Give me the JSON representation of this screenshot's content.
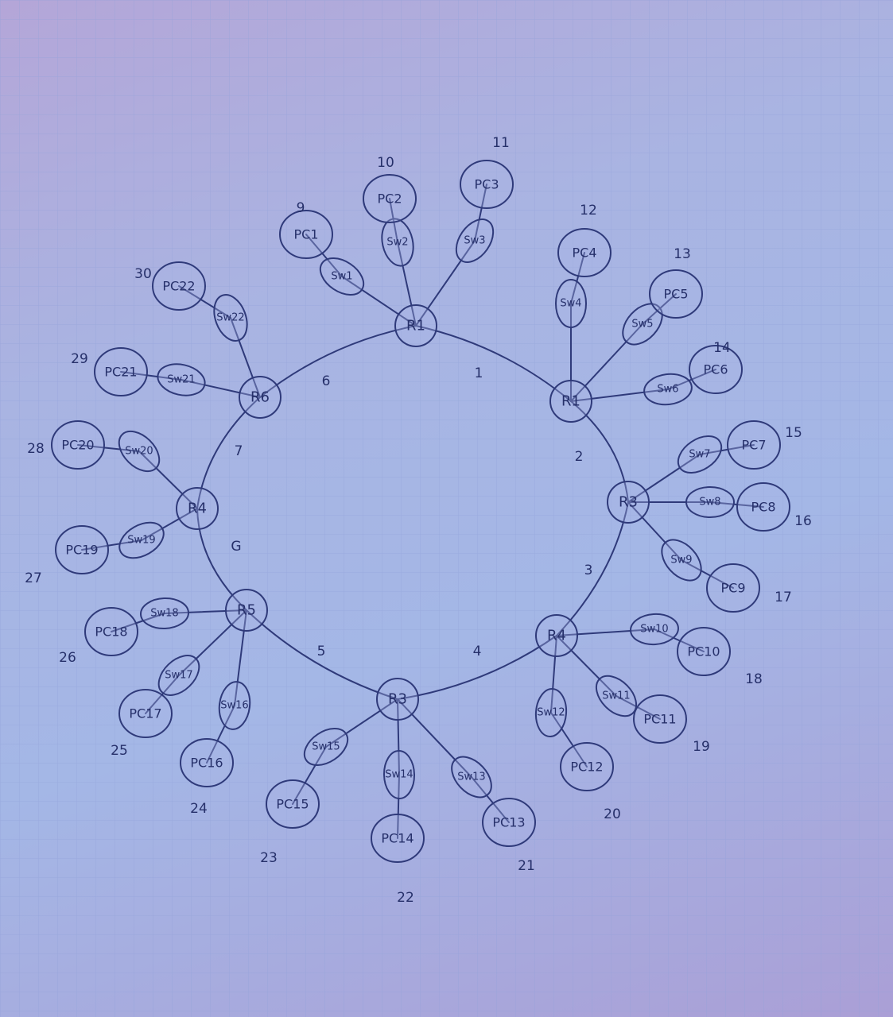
{
  "diagram": {
    "type": "network-topology",
    "paper": {
      "grid": true
    },
    "routers": [
      {
        "id": "r1a",
        "label": "R1"
      },
      {
        "id": "r1b",
        "label": "R1"
      },
      {
        "id": "r3",
        "label": "R3"
      },
      {
        "id": "r4",
        "label": "R4"
      },
      {
        "id": "r3b",
        "label": "R3"
      },
      {
        "id": "r5",
        "label": "R5"
      },
      {
        "id": "r4b",
        "label": "R4"
      },
      {
        "id": "r6",
        "label": "R6"
      }
    ],
    "ring_links": [
      {
        "from": "r1a",
        "to": "r1b",
        "label": "1"
      },
      {
        "from": "r1b",
        "to": "r3",
        "label": "2"
      },
      {
        "from": "r3",
        "to": "r4",
        "label": "3"
      },
      {
        "from": "r4",
        "to": "r3b",
        "label": "4"
      },
      {
        "from": "r3b",
        "to": "r5",
        "label": "5"
      },
      {
        "from": "r5",
        "to": "r4b",
        "label": "G"
      },
      {
        "from": "r4b",
        "to": "r6",
        "label": "7"
      },
      {
        "from": "r6",
        "to": "r1a",
        "label": "6"
      }
    ],
    "branches": [
      {
        "router": "r1a",
        "switch": "Sw1",
        "pc": "PC1",
        "num": "9"
      },
      {
        "router": "r1a",
        "switch": "Sw2",
        "pc": "PC2",
        "num": "10"
      },
      {
        "router": "r1a",
        "switch": "Sw3",
        "pc": "PC3",
        "num": "11"
      },
      {
        "router": "r1b",
        "switch": "Sw4",
        "pc": "PC4",
        "num": "12"
      },
      {
        "router": "r1b",
        "switch": "Sw5",
        "pc": "PC5",
        "num": "13"
      },
      {
        "router": "r1b",
        "switch": "Sw6",
        "pc": "PC6",
        "num": "14"
      },
      {
        "router": "r3",
        "switch": "Sw7",
        "pc": "PC7",
        "num": "15"
      },
      {
        "router": "r3",
        "switch": "Sw8",
        "pc": "PC8",
        "num": "16"
      },
      {
        "router": "r3",
        "switch": "Sw9",
        "pc": "PC9",
        "num": "17"
      },
      {
        "router": "r4",
        "switch": "Sw10",
        "pc": "PC10",
        "num": "18"
      },
      {
        "router": "r4",
        "switch": "Sw11",
        "pc": "PC11",
        "num": "19"
      },
      {
        "router": "r4",
        "switch": "Sw12",
        "pc": "PC12",
        "num": "20"
      },
      {
        "router": "r3b",
        "switch": "Sw13",
        "pc": "PC13",
        "num": "21"
      },
      {
        "router": "r3b",
        "switch": "Sw14",
        "pc": "PC14",
        "num": "22"
      },
      {
        "router": "r3b",
        "switch": "Sw15",
        "pc": "PC15",
        "num": "23"
      },
      {
        "router": "r5",
        "switch": "Sw16",
        "pc": "PC16",
        "num": "24"
      },
      {
        "router": "r5",
        "switch": "Sw17",
        "pc": "PC17",
        "num": "25"
      },
      {
        "router": "r5",
        "switch": "Sw18",
        "pc": "PC18",
        "num": "26"
      },
      {
        "router": "r4b",
        "switch": "Sw19",
        "pc": "PC19",
        "num": "27"
      },
      {
        "router": "r4b",
        "switch": "Sw20",
        "pc": "PC20",
        "num": "28"
      },
      {
        "router": "r6",
        "switch": "Sw21",
        "pc": "PC21",
        "num": "29"
      },
      {
        "router": "r6",
        "switch": "Sw22",
        "pc": "PC22",
        "num": "30"
      }
    ]
  }
}
